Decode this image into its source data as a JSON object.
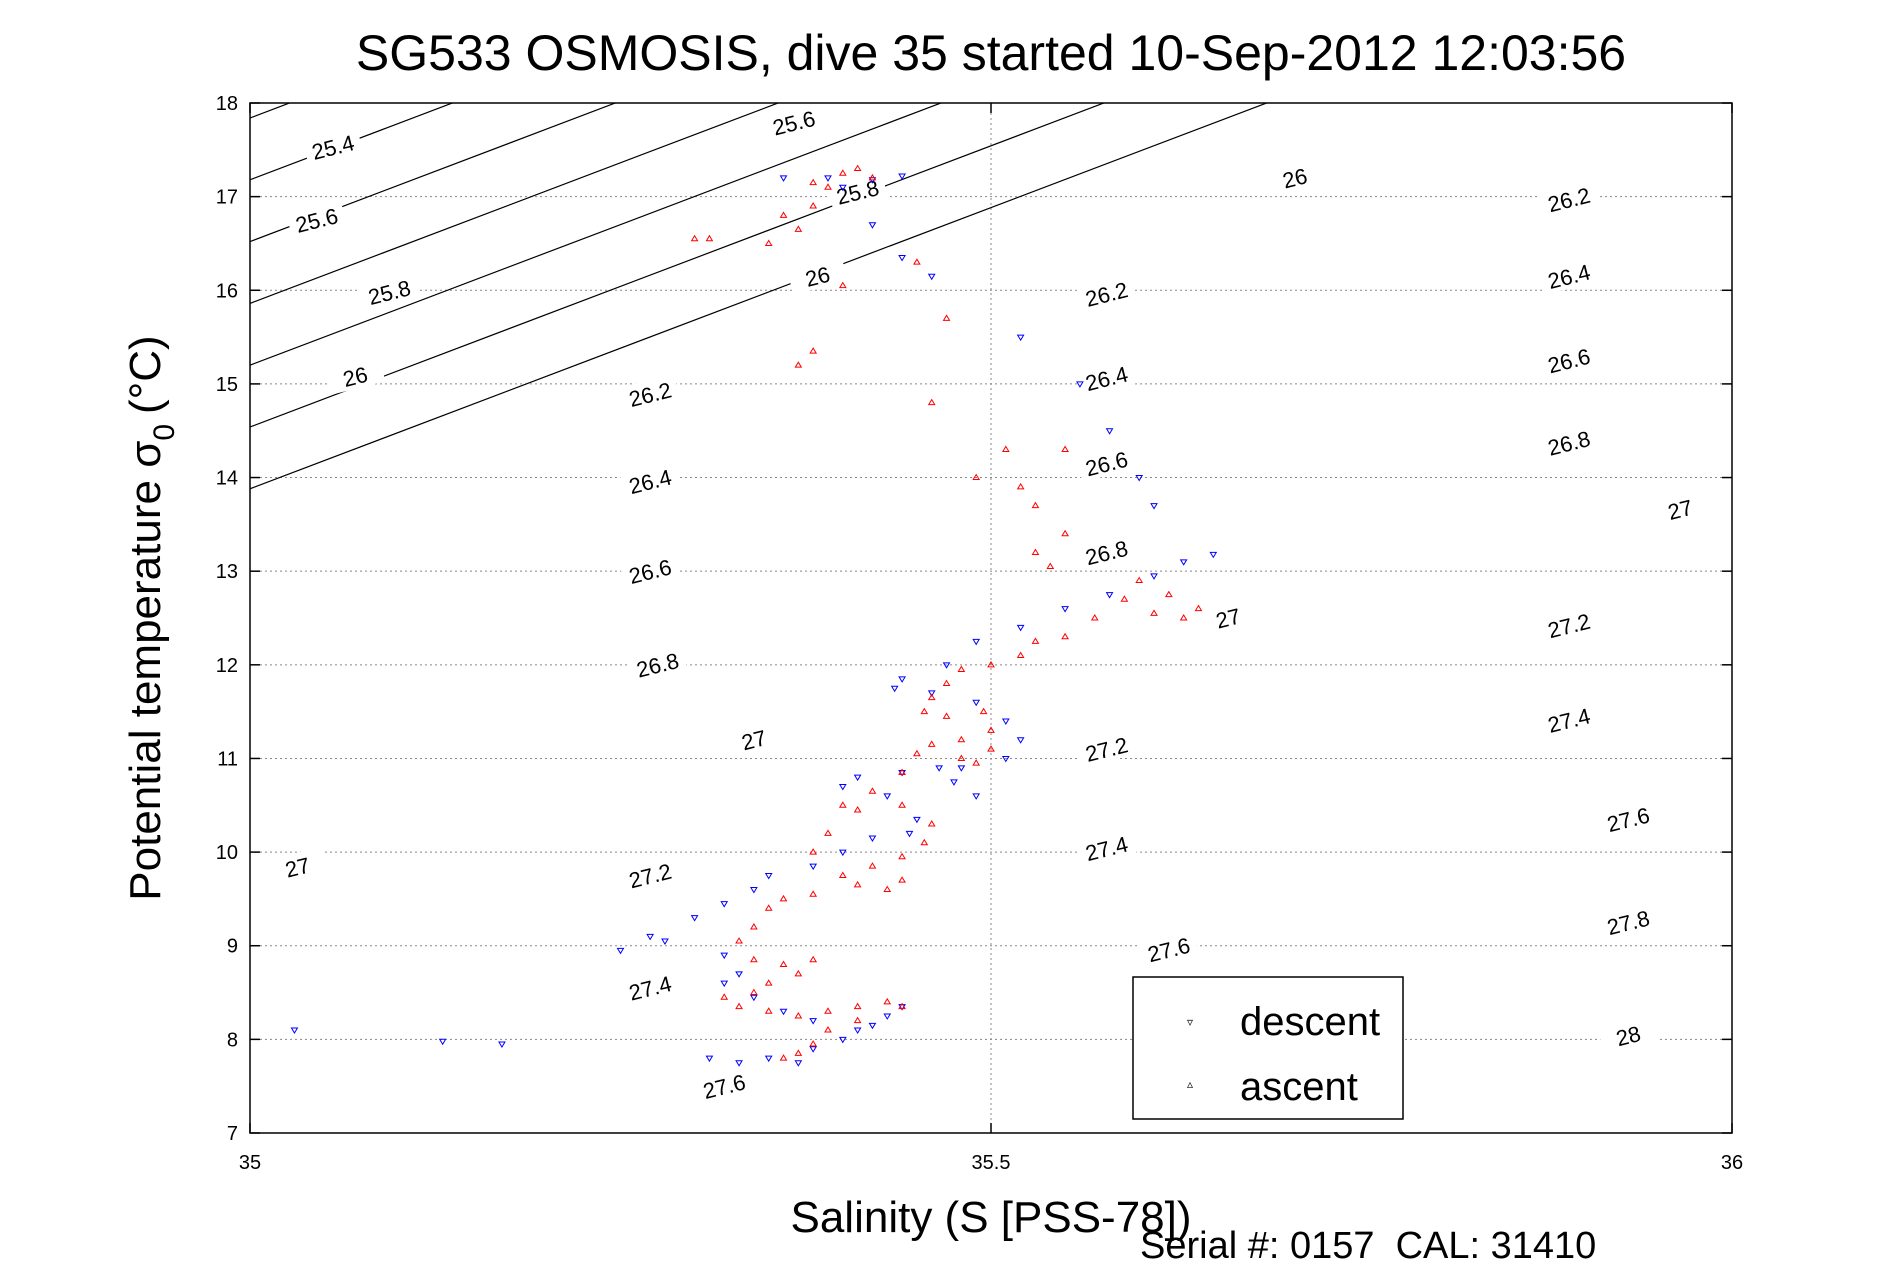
{
  "chart_data": {
    "type": "scatter",
    "title": "SG533 OSMOSIS, dive 35 started 10-Sep-2012 12:03:56",
    "xlabel": "Salinity (S [PSS-78])",
    "ylabel": "Potential temperature σ",
    "ylabel_subscript": "0",
    "ylabel_unit": "(°C)",
    "footer": "Serial #: 0157  CAL: 31410",
    "xlim": [
      35,
      36
    ],
    "ylim": [
      7,
      18
    ],
    "x_ticks": [
      35,
      35.5,
      36
    ],
    "x_tick_labels": [
      "35",
      "35.5",
      "36"
    ],
    "y_ticks": [
      7,
      8,
      9,
      10,
      11,
      12,
      13,
      14,
      15,
      16,
      17,
      18
    ],
    "y_tick_labels": [
      "7",
      "8",
      "9",
      "10",
      "11",
      "12",
      "13",
      "14",
      "15",
      "16",
      "17",
      "18"
    ],
    "grid": true,
    "legend_position": "bottom-right",
    "colors": {
      "descent": "#0000ff",
      "ascent": "#ff0000",
      "contour": "#000000",
      "grid": "#888888"
    },
    "density_contours": {
      "levels": [
        25.4,
        25.6,
        25.8,
        26,
        26.2,
        26.4,
        26.6,
        26.8,
        27,
        27.2,
        27.4,
        27.6,
        27.8,
        28
      ],
      "labels": [
        {
          "text": "25.4",
          "x": 35.056,
          "y": 17.53
        },
        {
          "text": "25.6",
          "x": 35.367,
          "y": 17.79
        },
        {
          "text": "25.6",
          "x": 35.045,
          "y": 16.75
        },
        {
          "text": "25.8",
          "x": 35.41,
          "y": 17.05
        },
        {
          "text": "25.8",
          "x": 35.094,
          "y": 15.98
        },
        {
          "text": "26",
          "x": 35.383,
          "y": 16.15
        },
        {
          "text": "26",
          "x": 35.705,
          "y": 17.2
        },
        {
          "text": "26",
          "x": 35.071,
          "y": 15.08
        },
        {
          "text": "26.2",
          "x": 35.89,
          "y": 16.97
        },
        {
          "text": "26.2",
          "x": 35.578,
          "y": 15.96
        },
        {
          "text": "26.2",
          "x": 35.27,
          "y": 14.89
        },
        {
          "text": "26.4",
          "x": 35.89,
          "y": 16.15
        },
        {
          "text": "26.4",
          "x": 35.578,
          "y": 15.06
        },
        {
          "text": "26.4",
          "x": 35.27,
          "y": 13.96
        },
        {
          "text": "26.6",
          "x": 35.89,
          "y": 15.25
        },
        {
          "text": "26.6",
          "x": 35.578,
          "y": 14.15
        },
        {
          "text": "26.6",
          "x": 35.27,
          "y": 13.0
        },
        {
          "text": "26.8",
          "x": 35.89,
          "y": 14.37
        },
        {
          "text": "26.8",
          "x": 35.578,
          "y": 13.2
        },
        {
          "text": "26.8",
          "x": 35.275,
          "y": 12.0
        },
        {
          "text": "27",
          "x": 35.965,
          "y": 13.66
        },
        {
          "text": "27",
          "x": 35.66,
          "y": 12.5
        },
        {
          "text": "27",
          "x": 35.34,
          "y": 11.2
        },
        {
          "text": "27",
          "x": 35.032,
          "y": 9.84
        },
        {
          "text": "27.2",
          "x": 35.89,
          "y": 12.42
        },
        {
          "text": "27.2",
          "x": 35.578,
          "y": 11.1
        },
        {
          "text": "27.2",
          "x": 35.27,
          "y": 9.75
        },
        {
          "text": "27.4",
          "x": 35.89,
          "y": 11.41
        },
        {
          "text": "27.4",
          "x": 35.578,
          "y": 10.04
        },
        {
          "text": "27.4",
          "x": 35.27,
          "y": 8.55
        },
        {
          "text": "27.6",
          "x": 35.93,
          "y": 10.35
        },
        {
          "text": "27.6",
          "x": 35.62,
          "y": 8.96
        },
        {
          "text": "27.6",
          "x": 35.32,
          "y": 7.5
        },
        {
          "text": "27.8",
          "x": 35.93,
          "y": 9.25
        },
        {
          "text": "28",
          "x": 35.93,
          "y": 8.04
        }
      ]
    },
    "legend": [
      {
        "name": "descent",
        "marker": "▿"
      },
      {
        "name": "ascent",
        "marker": "▵"
      }
    ],
    "series": [
      {
        "name": "descent",
        "marker": "triangle-down",
        "points": [
          [
            35.03,
            8.1
          ],
          [
            35.13,
            7.98
          ],
          [
            35.17,
            7.95
          ],
          [
            35.36,
            17.2
          ],
          [
            35.39,
            17.2
          ],
          [
            35.4,
            17.1
          ],
          [
            35.42,
            17.18
          ],
          [
            35.44,
            17.22
          ],
          [
            35.42,
            16.7
          ],
          [
            35.44,
            16.35
          ],
          [
            35.46,
            16.15
          ],
          [
            35.52,
            15.5
          ],
          [
            35.56,
            15.0
          ],
          [
            35.58,
            14.5
          ],
          [
            35.6,
            14.0
          ],
          [
            35.61,
            13.7
          ],
          [
            35.63,
            13.1
          ],
          [
            35.65,
            13.18
          ],
          [
            35.61,
            12.95
          ],
          [
            35.58,
            12.75
          ],
          [
            35.55,
            12.6
          ],
          [
            35.52,
            12.4
          ],
          [
            35.49,
            12.25
          ],
          [
            35.47,
            12.0
          ],
          [
            35.44,
            11.85
          ],
          [
            35.435,
            11.75
          ],
          [
            35.46,
            11.7
          ],
          [
            35.49,
            11.6
          ],
          [
            35.51,
            11.4
          ],
          [
            35.52,
            11.2
          ],
          [
            35.51,
            11.0
          ],
          [
            35.48,
            10.9
          ],
          [
            35.475,
            10.75
          ],
          [
            35.49,
            10.6
          ],
          [
            35.465,
            10.9
          ],
          [
            35.44,
            10.85
          ],
          [
            35.41,
            10.8
          ],
          [
            35.4,
            10.7
          ],
          [
            35.43,
            10.6
          ],
          [
            35.45,
            10.35
          ],
          [
            35.445,
            10.2
          ],
          [
            35.42,
            10.15
          ],
          [
            35.4,
            10.0
          ],
          [
            35.38,
            9.85
          ],
          [
            35.35,
            9.75
          ],
          [
            35.34,
            9.6
          ],
          [
            35.32,
            9.45
          ],
          [
            35.3,
            9.3
          ],
          [
            35.27,
            9.1
          ],
          [
            35.25,
            8.95
          ],
          [
            35.28,
            9.05
          ],
          [
            35.32,
            8.9
          ],
          [
            35.33,
            8.7
          ],
          [
            35.32,
            8.6
          ],
          [
            35.34,
            8.45
          ],
          [
            35.36,
            8.3
          ],
          [
            35.38,
            8.2
          ],
          [
            35.41,
            8.1
          ],
          [
            35.43,
            8.25
          ],
          [
            35.44,
            8.35
          ],
          [
            35.42,
            8.15
          ],
          [
            35.4,
            8.0
          ],
          [
            35.38,
            7.9
          ],
          [
            35.37,
            7.75
          ],
          [
            35.35,
            7.8
          ],
          [
            35.33,
            7.75
          ],
          [
            35.31,
            7.8
          ]
        ]
      },
      {
        "name": "ascent",
        "marker": "triangle-up",
        "points": [
          [
            35.3,
            16.55
          ],
          [
            35.31,
            16.55
          ],
          [
            35.35,
            16.5
          ],
          [
            35.36,
            16.8
          ],
          [
            35.38,
            16.9
          ],
          [
            35.39,
            17.1
          ],
          [
            35.4,
            17.25
          ],
          [
            35.38,
            17.15
          ],
          [
            35.41,
            17.3
          ],
          [
            35.42,
            17.2
          ],
          [
            35.37,
            16.65
          ],
          [
            35.4,
            16.05
          ],
          [
            35.38,
            15.35
          ],
          [
            35.37,
            15.2
          ],
          [
            35.45,
            16.3
          ],
          [
            35.47,
            15.7
          ],
          [
            35.46,
            14.8
          ],
          [
            35.49,
            14.0
          ],
          [
            35.51,
            14.3
          ],
          [
            35.52,
            13.9
          ],
          [
            35.53,
            13.7
          ],
          [
            35.55,
            14.3
          ],
          [
            35.53,
            13.2
          ],
          [
            35.54,
            13.05
          ],
          [
            35.55,
            13.4
          ],
          [
            35.61,
            12.55
          ],
          [
            35.63,
            12.5
          ],
          [
            35.64,
            12.6
          ],
          [
            35.62,
            12.75
          ],
          [
            35.6,
            12.9
          ],
          [
            35.59,
            12.7
          ],
          [
            35.57,
            12.5
          ],
          [
            35.55,
            12.3
          ],
          [
            35.53,
            12.25
          ],
          [
            35.52,
            12.1
          ],
          [
            35.5,
            12.0
          ],
          [
            35.48,
            11.95
          ],
          [
            35.47,
            11.8
          ],
          [
            35.46,
            11.65
          ],
          [
            35.455,
            11.5
          ],
          [
            35.47,
            11.45
          ],
          [
            35.495,
            11.5
          ],
          [
            35.5,
            11.3
          ],
          [
            35.48,
            11.2
          ],
          [
            35.46,
            11.15
          ],
          [
            35.45,
            11.05
          ],
          [
            35.48,
            11.0
          ],
          [
            35.5,
            11.1
          ],
          [
            35.49,
            10.95
          ],
          [
            35.44,
            10.85
          ],
          [
            35.42,
            10.65
          ],
          [
            35.4,
            10.5
          ],
          [
            35.41,
            10.45
          ],
          [
            35.44,
            10.5
          ],
          [
            35.46,
            10.3
          ],
          [
            35.455,
            10.1
          ],
          [
            35.44,
            9.95
          ],
          [
            35.42,
            9.85
          ],
          [
            35.4,
            9.75
          ],
          [
            35.38,
            10.0
          ],
          [
            35.39,
            10.2
          ],
          [
            35.41,
            9.65
          ],
          [
            35.43,
            9.6
          ],
          [
            35.44,
            9.7
          ],
          [
            35.38,
            9.55
          ],
          [
            35.36,
            9.5
          ],
          [
            35.35,
            9.4
          ],
          [
            35.34,
            9.2
          ],
          [
            35.33,
            9.05
          ],
          [
            35.34,
            8.85
          ],
          [
            35.36,
            8.8
          ],
          [
            35.38,
            8.85
          ],
          [
            35.37,
            8.7
          ],
          [
            35.35,
            8.6
          ],
          [
            35.34,
            8.5
          ],
          [
            35.32,
            8.45
          ],
          [
            35.33,
            8.35
          ],
          [
            35.35,
            8.3
          ],
          [
            35.37,
            8.25
          ],
          [
            35.39,
            8.3
          ],
          [
            35.41,
            8.35
          ],
          [
            35.43,
            8.4
          ],
          [
            35.44,
            8.35
          ],
          [
            35.41,
            8.2
          ],
          [
            35.39,
            8.1
          ],
          [
            35.38,
            7.95
          ],
          [
            35.37,
            7.85
          ],
          [
            35.36,
            7.8
          ]
        ]
      }
    ]
  }
}
